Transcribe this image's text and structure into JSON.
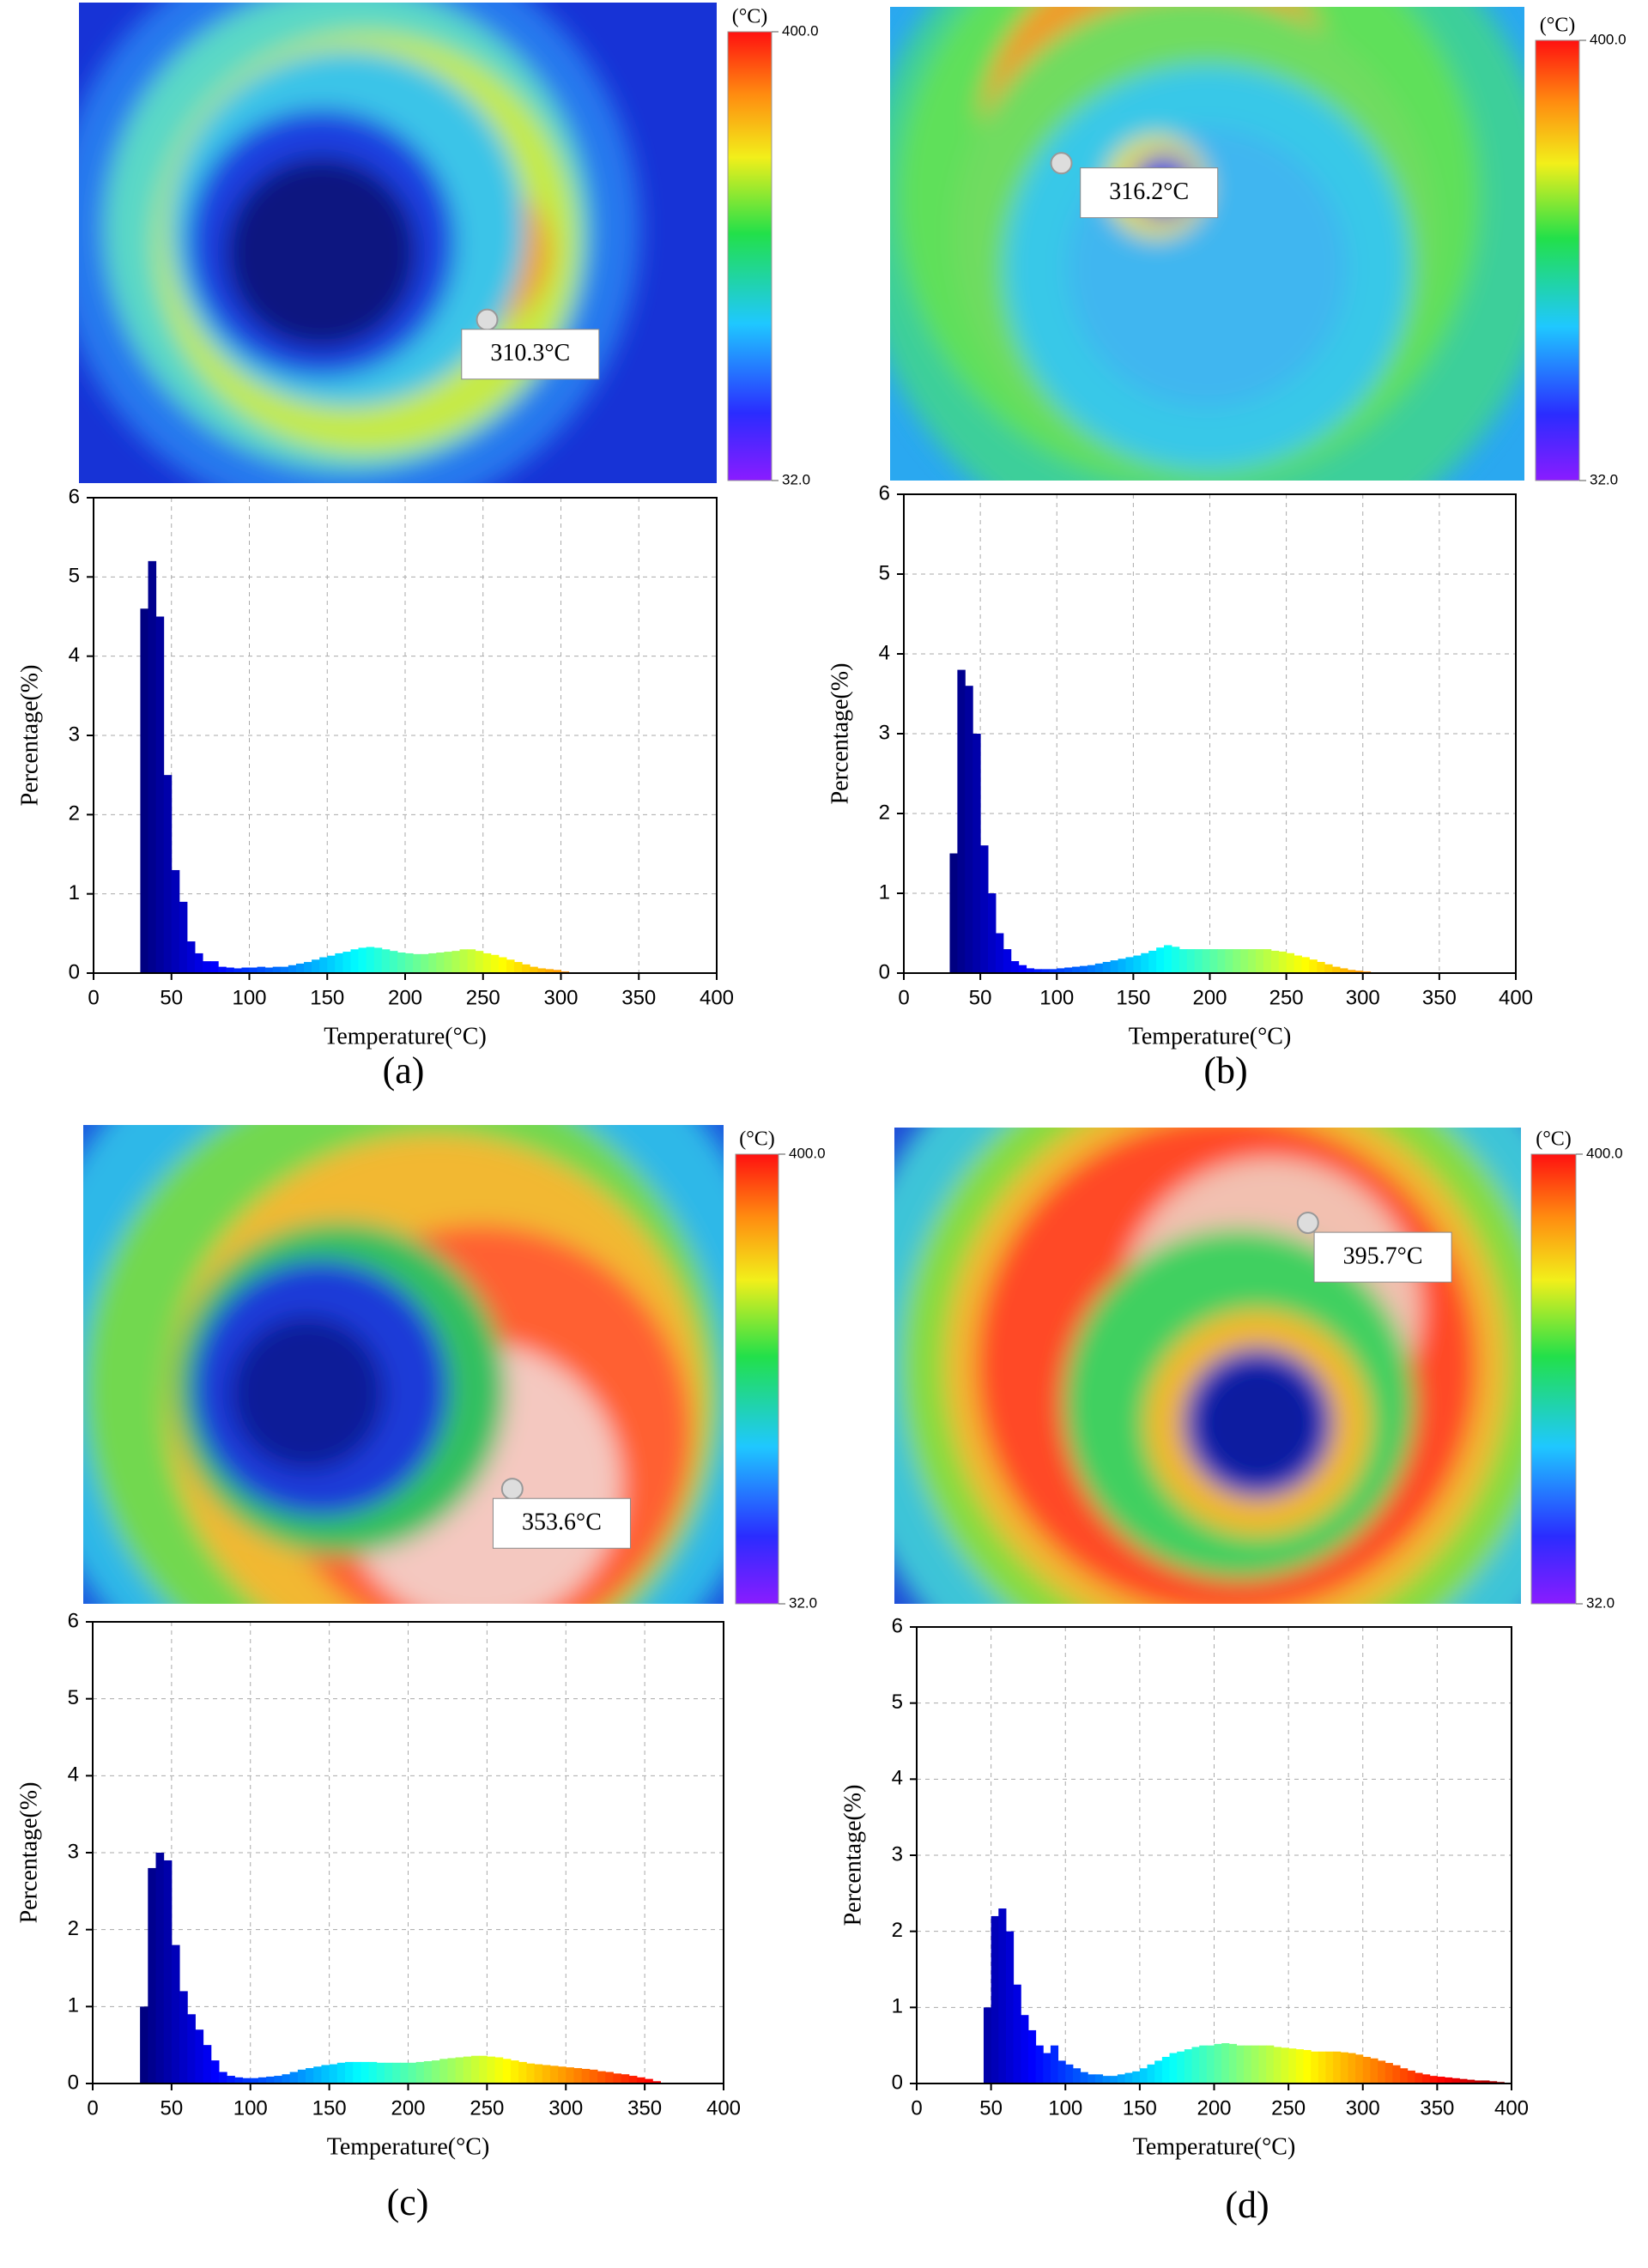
{
  "chart_data": [
    {
      "type": "histogram",
      "panel_label": "(a)",
      "annotation": "310.3°C",
      "colorbar": {
        "unit": "(°C)",
        "ticks": [
          {
            "value": 32,
            "label": "32.0"
          },
          {
            "value": 400,
            "label": "400.0"
          }
        ]
      },
      "xlabel": "Temperature(°C)",
      "ylabel": "Percentage(%)",
      "xlim": [
        0,
        400
      ],
      "ylim": [
        0,
        6
      ],
      "xticks": [
        0,
        50,
        100,
        150,
        200,
        250,
        300,
        350,
        400
      ],
      "yticks": [
        0,
        1,
        2,
        3,
        4,
        5,
        6
      ],
      "grid": true,
      "bins": [
        30,
        35,
        40,
        45,
        50,
        55,
        60,
        65,
        70,
        75,
        80,
        85,
        90,
        95,
        100,
        105,
        110,
        115,
        120,
        125,
        130,
        135,
        140,
        145,
        150,
        155,
        160,
        165,
        170,
        175,
        180,
        185,
        190,
        195,
        200,
        205,
        210,
        215,
        220,
        225,
        230,
        235,
        240,
        245,
        250,
        255,
        260,
        265,
        270,
        275,
        280,
        285,
        290,
        295,
        300,
        305
      ],
      "values": [
        4.6,
        5.2,
        4.5,
        2.5,
        1.3,
        0.9,
        0.4,
        0.25,
        0.15,
        0.15,
        0.08,
        0.07,
        0.06,
        0.07,
        0.07,
        0.08,
        0.07,
        0.08,
        0.08,
        0.1,
        0.12,
        0.14,
        0.17,
        0.2,
        0.22,
        0.25,
        0.27,
        0.3,
        0.32,
        0.33,
        0.32,
        0.3,
        0.28,
        0.26,
        0.25,
        0.24,
        0.24,
        0.25,
        0.26,
        0.27,
        0.28,
        0.3,
        0.3,
        0.28,
        0.25,
        0.23,
        0.2,
        0.17,
        0.14,
        0.11,
        0.08,
        0.06,
        0.05,
        0.04,
        0.02
      ]
    },
    {
      "type": "histogram",
      "panel_label": "(b)",
      "annotation": "316.2°C",
      "colorbar": {
        "unit": "(°C)",
        "ticks": [
          {
            "value": 32,
            "label": "32.0"
          },
          {
            "value": 400,
            "label": "400.0"
          }
        ]
      },
      "xlabel": "Temperature(°C)",
      "ylabel": "Percentage(%)",
      "xlim": [
        0,
        400
      ],
      "ylim": [
        0,
        6
      ],
      "xticks": [
        0,
        50,
        100,
        150,
        200,
        250,
        300,
        350,
        400
      ],
      "yticks": [
        0,
        1,
        2,
        3,
        4,
        5,
        6
      ],
      "grid": true,
      "bins": [
        30,
        35,
        40,
        45,
        50,
        55,
        60,
        65,
        70,
        75,
        80,
        85,
        90,
        95,
        100,
        105,
        110,
        115,
        120,
        125,
        130,
        135,
        140,
        145,
        150,
        155,
        160,
        165,
        170,
        175,
        180,
        185,
        190,
        195,
        200,
        205,
        210,
        215,
        220,
        225,
        230,
        235,
        240,
        245,
        250,
        255,
        260,
        265,
        270,
        275,
        280,
        285,
        290,
        295,
        300,
        305,
        310
      ],
      "values": [
        1.5,
        3.8,
        3.6,
        3.0,
        1.6,
        1.0,
        0.5,
        0.3,
        0.15,
        0.1,
        0.06,
        0.05,
        0.05,
        0.05,
        0.06,
        0.07,
        0.08,
        0.09,
        0.1,
        0.12,
        0.14,
        0.16,
        0.18,
        0.2,
        0.22,
        0.25,
        0.28,
        0.32,
        0.35,
        0.33,
        0.3,
        0.3,
        0.3,
        0.3,
        0.3,
        0.3,
        0.3,
        0.3,
        0.3,
        0.3,
        0.3,
        0.3,
        0.28,
        0.27,
        0.25,
        0.22,
        0.2,
        0.17,
        0.14,
        0.11,
        0.08,
        0.06,
        0.04,
        0.03,
        0.02,
        0.01
      ]
    },
    {
      "type": "histogram",
      "panel_label": "(c)",
      "annotation": "353.6°C",
      "colorbar": {
        "unit": "(°C)",
        "ticks": [
          {
            "value": 32,
            "label": "32.0"
          },
          {
            "value": 400,
            "label": "400.0"
          }
        ]
      },
      "xlabel": "Temperature(°C)",
      "ylabel": "Percentage(%)",
      "xlim": [
        0,
        400
      ],
      "ylim": [
        0,
        6
      ],
      "xticks": [
        0,
        50,
        100,
        150,
        200,
        250,
        300,
        350,
        400
      ],
      "yticks": [
        0,
        1,
        2,
        3,
        4,
        5,
        6
      ],
      "grid": true,
      "bins": [
        30,
        35,
        40,
        45,
        50,
        55,
        60,
        65,
        70,
        75,
        80,
        85,
        90,
        95,
        100,
        105,
        110,
        115,
        120,
        125,
        130,
        135,
        140,
        145,
        150,
        155,
        160,
        165,
        170,
        175,
        180,
        185,
        190,
        195,
        200,
        205,
        210,
        215,
        220,
        225,
        230,
        235,
        240,
        245,
        250,
        255,
        260,
        265,
        270,
        275,
        280,
        285,
        290,
        295,
        300,
        305,
        310,
        315,
        320,
        325,
        330,
        335,
        340,
        345,
        350,
        355,
        360
      ],
      "values": [
        1.0,
        2.8,
        3.0,
        2.9,
        1.8,
        1.2,
        0.9,
        0.7,
        0.5,
        0.3,
        0.15,
        0.1,
        0.08,
        0.07,
        0.07,
        0.08,
        0.09,
        0.1,
        0.12,
        0.15,
        0.18,
        0.2,
        0.22,
        0.24,
        0.25,
        0.27,
        0.28,
        0.28,
        0.28,
        0.28,
        0.27,
        0.27,
        0.27,
        0.27,
        0.27,
        0.28,
        0.29,
        0.3,
        0.32,
        0.33,
        0.34,
        0.35,
        0.36,
        0.36,
        0.35,
        0.34,
        0.32,
        0.3,
        0.28,
        0.26,
        0.25,
        0.24,
        0.23,
        0.22,
        0.21,
        0.2,
        0.19,
        0.18,
        0.16,
        0.15,
        0.13,
        0.12,
        0.1,
        0.08,
        0.06,
        0.03
      ]
    },
    {
      "type": "histogram",
      "panel_label": "(d)",
      "annotation": "395.7°C",
      "colorbar": {
        "unit": "(°C)",
        "ticks": [
          {
            "value": 32,
            "label": "32.0"
          },
          {
            "value": 400,
            "label": "400.0"
          }
        ]
      },
      "xlabel": "Temperature(°C)",
      "ylabel": "Percentage(%)",
      "xlim": [
        0,
        400
      ],
      "ylim": [
        0,
        6
      ],
      "xticks": [
        0,
        50,
        100,
        150,
        200,
        250,
        300,
        350,
        400
      ],
      "yticks": [
        0,
        1,
        2,
        3,
        4,
        5,
        6
      ],
      "grid": true,
      "bins": [
        45,
        50,
        55,
        60,
        65,
        70,
        75,
        80,
        85,
        90,
        95,
        100,
        105,
        110,
        115,
        120,
        125,
        130,
        135,
        140,
        145,
        150,
        155,
        160,
        165,
        170,
        175,
        180,
        185,
        190,
        195,
        200,
        205,
        210,
        215,
        220,
        225,
        230,
        235,
        240,
        245,
        250,
        255,
        260,
        265,
        270,
        275,
        280,
        285,
        290,
        295,
        300,
        305,
        310,
        315,
        320,
        325,
        330,
        335,
        340,
        345,
        350,
        355,
        360,
        365,
        370,
        375,
        380,
        385,
        390,
        395,
        400
      ],
      "values": [
        1.0,
        2.2,
        2.3,
        2.0,
        1.3,
        0.9,
        0.7,
        0.5,
        0.4,
        0.5,
        0.3,
        0.25,
        0.2,
        0.15,
        0.12,
        0.12,
        0.1,
        0.1,
        0.12,
        0.14,
        0.16,
        0.2,
        0.25,
        0.3,
        0.35,
        0.4,
        0.42,
        0.45,
        0.48,
        0.5,
        0.5,
        0.52,
        0.53,
        0.52,
        0.5,
        0.5,
        0.5,
        0.5,
        0.5,
        0.48,
        0.47,
        0.46,
        0.45,
        0.44,
        0.42,
        0.42,
        0.42,
        0.42,
        0.41,
        0.4,
        0.38,
        0.35,
        0.33,
        0.3,
        0.27,
        0.24,
        0.2,
        0.17,
        0.14,
        0.12,
        0.1,
        0.09,
        0.08,
        0.07,
        0.06,
        0.05,
        0.04,
        0.04,
        0.03,
        0.02,
        0.01
      ]
    }
  ]
}
